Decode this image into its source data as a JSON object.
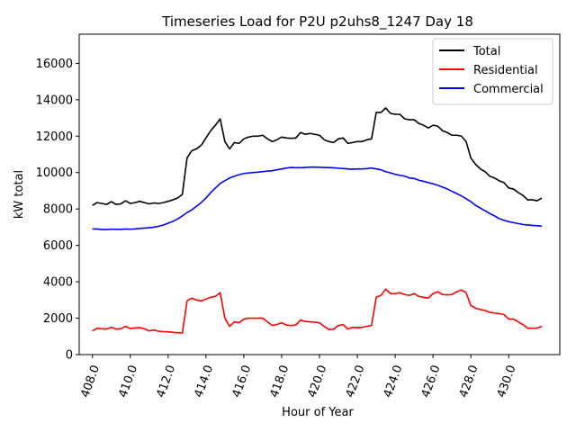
{
  "chart_data": {
    "type": "line",
    "title": "Timeseries Load for P2U p2uhs8_1247  Day 18",
    "xlabel": "Hour of Year",
    "ylabel": "kW total",
    "xlim": [
      407.3,
      432.7
    ],
    "ylim": [
      0,
      17600
    ],
    "xticks": [
      408,
      410,
      412,
      414,
      416,
      418,
      420,
      422,
      424,
      426,
      428,
      430
    ],
    "xtick_labels": [
      "408.0",
      "410.0",
      "412.0",
      "414.0",
      "416.0",
      "418.0",
      "420.0",
      "422.0",
      "424.0",
      "426.0",
      "428.0",
      "430.0"
    ],
    "yticks": [
      0,
      2000,
      4000,
      6000,
      8000,
      10000,
      12000,
      14000,
      16000
    ],
    "ytick_labels": [
      "0",
      "2000",
      "4000",
      "6000",
      "8000",
      "10000",
      "12000",
      "14000",
      "16000"
    ],
    "legend_position": "top-right",
    "x": [
      408.0,
      408.25,
      408.5,
      408.75,
      409.0,
      409.25,
      409.5,
      409.75,
      410.0,
      410.25,
      410.5,
      410.75,
      411.0,
      411.25,
      411.5,
      411.75,
      412.0,
      412.25,
      412.5,
      412.75,
      413.0,
      413.25,
      413.5,
      413.75,
      414.0,
      414.25,
      414.5,
      414.75,
      415.0,
      415.25,
      415.5,
      415.75,
      416.0,
      416.25,
      416.5,
      416.75,
      417.0,
      417.25,
      417.5,
      417.75,
      418.0,
      418.25,
      418.5,
      418.75,
      419.0,
      419.25,
      419.5,
      419.75,
      420.0,
      420.25,
      420.5,
      420.75,
      421.0,
      421.25,
      421.5,
      421.75,
      422.0,
      422.25,
      422.5,
      422.75,
      423.0,
      423.25,
      423.5,
      423.75,
      424.0,
      424.25,
      424.5,
      424.75,
      425.0,
      425.25,
      425.5,
      425.75,
      426.0,
      426.25,
      426.5,
      426.75,
      427.0,
      427.25,
      427.5,
      427.75,
      428.0,
      428.25,
      428.5,
      428.75,
      429.0,
      429.25,
      429.5,
      429.75,
      430.0,
      430.25,
      430.5,
      430.75,
      431.0,
      431.25,
      431.5,
      431.75
    ],
    "series": [
      {
        "name": "Total",
        "color": "#000000",
        "values": [
          8200,
          8350,
          8300,
          8250,
          8400,
          8250,
          8280,
          8450,
          8300,
          8350,
          8420,
          8350,
          8280,
          8330,
          8300,
          8350,
          8420,
          8500,
          8600,
          8800,
          10800,
          11200,
          11300,
          11500,
          11900,
          12300,
          12600,
          12950,
          11700,
          11300,
          11650,
          11600,
          11850,
          11950,
          12000,
          12000,
          12050,
          11850,
          11700,
          11800,
          11950,
          11900,
          11880,
          11900,
          12200,
          12100,
          12150,
          12100,
          12050,
          11800,
          11700,
          11650,
          11850,
          11900,
          11600,
          11650,
          11700,
          11700,
          11800,
          11850,
          13300,
          13300,
          13550,
          13250,
          13200,
          13200,
          12950,
          12900,
          12900,
          12700,
          12600,
          12450,
          12600,
          12550,
          12300,
          12200,
          12050,
          12050,
          12000,
          11700,
          10800,
          10450,
          10200,
          10050,
          9800,
          9700,
          9550,
          9450,
          9150,
          9100,
          8900,
          8750,
          8500,
          8500,
          8450,
          8600
        ]
      },
      {
        "name": "Residential",
        "color": "#ff0000",
        "values": [
          1300,
          1450,
          1420,
          1400,
          1500,
          1400,
          1420,
          1550,
          1430,
          1460,
          1480,
          1420,
          1300,
          1350,
          1280,
          1260,
          1250,
          1220,
          1200,
          1180,
          2950,
          3100,
          3000,
          2950,
          3050,
          3150,
          3200,
          3400,
          2000,
          1550,
          1800,
          1750,
          1950,
          2000,
          2000,
          2000,
          2000,
          1800,
          1600,
          1650,
          1750,
          1620,
          1600,
          1620,
          1900,
          1820,
          1800,
          1780,
          1750,
          1550,
          1380,
          1400,
          1600,
          1650,
          1400,
          1500,
          1480,
          1500,
          1550,
          1600,
          3150,
          3250,
          3600,
          3350,
          3350,
          3400,
          3300,
          3250,
          3350,
          3200,
          3150,
          3100,
          3350,
          3450,
          3300,
          3280,
          3300,
          3450,
          3550,
          3400,
          2700,
          2550,
          2480,
          2420,
          2320,
          2280,
          2250,
          2200,
          1950,
          1950,
          1800,
          1650,
          1450,
          1450,
          1450,
          1550
        ]
      },
      {
        "name": "Commercial",
        "color": "#0000ff",
        "values": [
          6900,
          6900,
          6870,
          6870,
          6890,
          6880,
          6880,
          6900,
          6890,
          6900,
          6930,
          6950,
          6970,
          7000,
          7050,
          7120,
          7220,
          7320,
          7450,
          7620,
          7800,
          7950,
          8150,
          8350,
          8600,
          8900,
          9150,
          9400,
          9550,
          9700,
          9800,
          9880,
          9950,
          9980,
          10000,
          10020,
          10050,
          10080,
          10100,
          10150,
          10200,
          10250,
          10280,
          10270,
          10270,
          10280,
          10300,
          10300,
          10290,
          10280,
          10270,
          10260,
          10240,
          10220,
          10200,
          10180,
          10200,
          10200,
          10220,
          10250,
          10200,
          10150,
          10050,
          9980,
          9900,
          9850,
          9800,
          9700,
          9680,
          9580,
          9520,
          9450,
          9380,
          9300,
          9200,
          9100,
          8970,
          8850,
          8720,
          8560,
          8400,
          8200,
          8050,
          7900,
          7750,
          7620,
          7470,
          7380,
          7300,
          7250,
          7200,
          7150,
          7120,
          7100,
          7080,
          7060
        ]
      }
    ]
  }
}
